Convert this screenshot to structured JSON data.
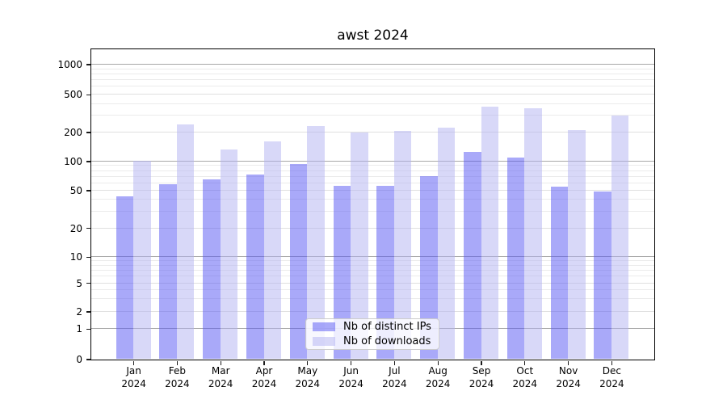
{
  "title": "awst 2024",
  "legend": {
    "items": [
      {
        "label": "Nb of distinct IPs",
        "color": "rgba(84,84,244,0.5)"
      },
      {
        "label": "Nb of downloads",
        "color": "rgba(177,177,242,0.5)"
      }
    ]
  },
  "y_axis": {
    "tick_labels": [
      "1000",
      "500",
      "200",
      "100",
      "50",
      "20",
      "10",
      "5",
      "2",
      "1",
      "0"
    ],
    "tick_values": [
      1000,
      500,
      200,
      100,
      50,
      20,
      10,
      5,
      2,
      1,
      0
    ]
  },
  "x_axis": {
    "labels": [
      {
        "month": "Jan",
        "year": "2024"
      },
      {
        "month": "Feb",
        "year": "2024"
      },
      {
        "month": "Mar",
        "year": "2024"
      },
      {
        "month": "Apr",
        "year": "2024"
      },
      {
        "month": "May",
        "year": "2024"
      },
      {
        "month": "Jun",
        "year": "2024"
      },
      {
        "month": "Jul",
        "year": "2024"
      },
      {
        "month": "Aug",
        "year": "2024"
      },
      {
        "month": "Sep",
        "year": "2024"
      },
      {
        "month": "Oct",
        "year": "2024"
      },
      {
        "month": "Nov",
        "year": "2024"
      },
      {
        "month": "Dec",
        "year": "2024"
      }
    ]
  },
  "chart_data": {
    "type": "bar",
    "title": "awst 2024",
    "categories": [
      "Jan 2024",
      "Feb 2024",
      "Mar 2024",
      "Apr 2024",
      "May 2024",
      "Jun 2024",
      "Jul 2024",
      "Aug 2024",
      "Sep 2024",
      "Oct 2024",
      "Nov 2024",
      "Dec 2024"
    ],
    "series": [
      {
        "name": "Nb of distinct IPs",
        "color": "rgba(84,84,244,0.5)",
        "values": [
          43,
          58,
          65,
          73,
          93,
          56,
          56,
          70,
          124,
          110,
          55,
          49
        ]
      },
      {
        "name": "Nb of downloads",
        "color": "rgba(177,177,242,0.5)",
        "values": [
          101,
          242,
          131,
          160,
          230,
          197,
          207,
          224,
          368,
          357,
          212,
          298
        ]
      }
    ],
    "yscale": "symlog",
    "yticks": [
      0,
      1,
      2,
      5,
      10,
      20,
      50,
      100,
      200,
      500,
      1000
    ],
    "ylim": [
      0,
      1400
    ],
    "xlabel": "",
    "ylabel": "",
    "grid": "horizontal major + log minor gridlines",
    "legend_position": "inside lower-center"
  },
  "grid_colors": {
    "major": "#a8a8a8",
    "labeled": "#e0e0e0",
    "minor": "#ebebeb"
  }
}
